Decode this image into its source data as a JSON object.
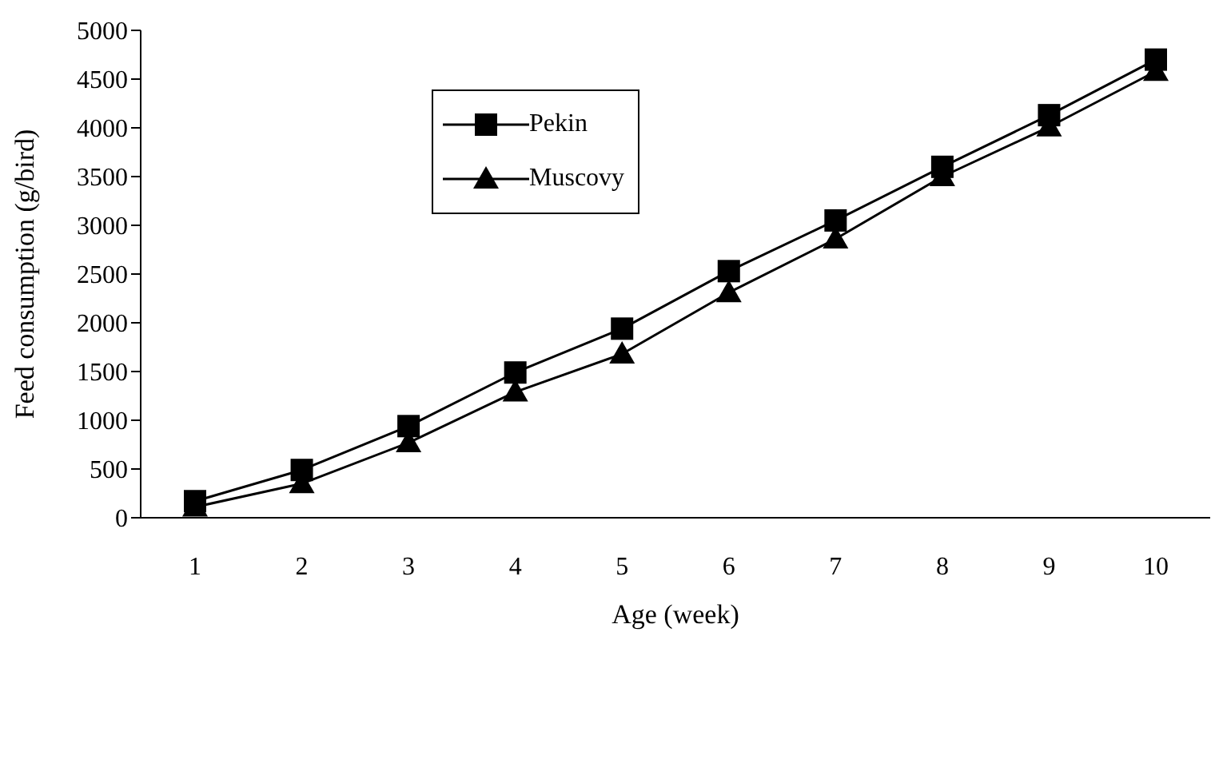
{
  "chart_data": {
    "type": "line",
    "xlabel": "Age  (week)",
    "ylabel": "Feed consumption (g/bird)",
    "categories": [
      "1",
      "2",
      "3",
      "4",
      "5",
      "6",
      "7",
      "8",
      "9",
      "10"
    ],
    "series": [
      {
        "name": "Pekin",
        "color": "#000000",
        "marker": "square",
        "values": [
          170,
          490,
          940,
          1490,
          1940,
          2530,
          3050,
          3600,
          4130,
          4700
        ]
      },
      {
        "name": "Muscovy",
        "color": "#000000",
        "marker": "triangle",
        "values": [
          110,
          350,
          770,
          1290,
          1680,
          2310,
          2860,
          3500,
          4010,
          4580
        ]
      }
    ],
    "ylim": [
      0,
      5000
    ],
    "yticks": [
      0,
      500,
      1000,
      1500,
      2000,
      2500,
      3000,
      3500,
      4000,
      4500,
      5000
    ],
    "grid": false,
    "legend": "top left",
    "line_style": "solid"
  }
}
